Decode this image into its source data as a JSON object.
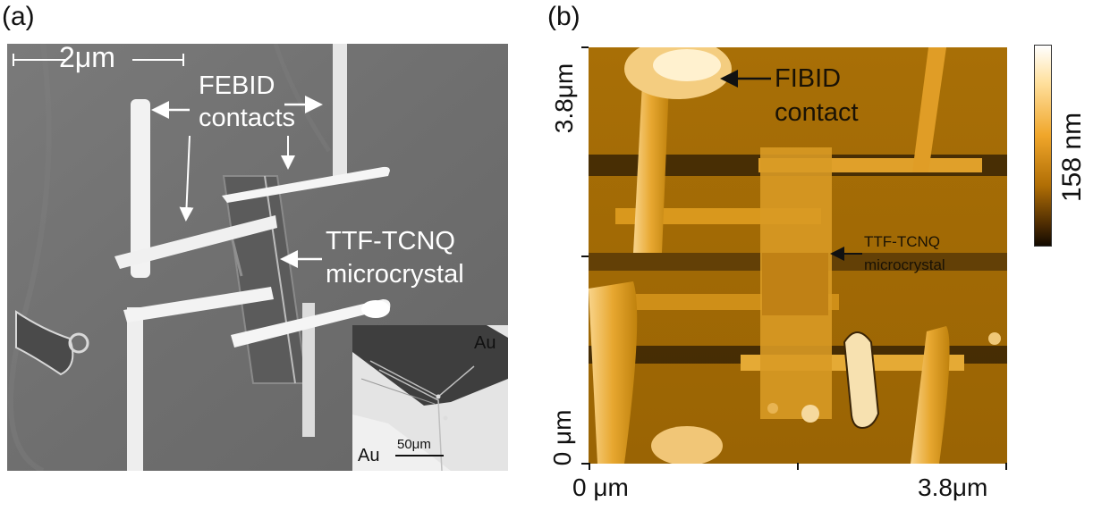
{
  "panel_a": {
    "label": "(a)",
    "scale_bar": "2μm",
    "contacts_label_line1": "FEBID",
    "contacts_label_line2": "contacts",
    "crystal_label_line1": "TTF-TCNQ",
    "crystal_label_line2": "microcrystal",
    "inset": {
      "au_top": "Au",
      "au_bottom": "Au",
      "scale_bar": "50μm"
    }
  },
  "panel_b": {
    "label": "(b)",
    "contact_label_line1": "FIBID",
    "contact_label_line2": "contact",
    "crystal_label_line1": "TTF-TCNQ",
    "crystal_label_line2": "microcrystal",
    "y_axis_top": "3.8μm",
    "y_axis_bottom": "0 μm",
    "x_axis_left": "0 μm",
    "x_axis_right": "3.8μm",
    "colorbar_label": "158 nm"
  }
}
